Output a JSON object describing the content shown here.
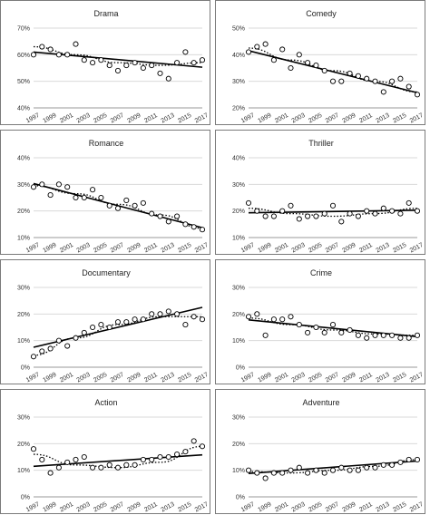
{
  "chart_data": [
    {
      "type": "scatter",
      "title": "Drama",
      "ylim": [
        0.4,
        0.7
      ],
      "yticks": [
        "40%",
        "50%",
        "60%",
        "70%"
      ],
      "x": [
        1997,
        1998,
        1999,
        2000,
        2001,
        2002,
        2003,
        2004,
        2005,
        2006,
        2007,
        2008,
        2009,
        2010,
        2011,
        2012,
        2013,
        2014,
        2015,
        2016,
        2017
      ],
      "values": [
        0.6,
        0.63,
        0.62,
        0.6,
        0.6,
        0.64,
        0.58,
        0.57,
        0.58,
        0.56,
        0.54,
        0.56,
        0.57,
        0.55,
        0.56,
        0.53,
        0.51,
        0.57,
        0.61,
        0.57,
        0.58
      ],
      "trend_linear": [
        0.61,
        0.553
      ],
      "trend_dotted": [
        0.63,
        0.6,
        0.57,
        0.56,
        0.57
      ]
    },
    {
      "type": "scatter",
      "title": "Comedy",
      "ylim": [
        0.2,
        0.5
      ],
      "yticks": [
        "20%",
        "30%",
        "40%",
        "50%"
      ],
      "x": [
        1997,
        1998,
        1999,
        2000,
        2001,
        2002,
        2003,
        2004,
        2005,
        2006,
        2007,
        2008,
        2009,
        2010,
        2011,
        2012,
        2013,
        2014,
        2015,
        2016,
        2017
      ],
      "values": [
        0.41,
        0.43,
        0.44,
        0.38,
        0.42,
        0.35,
        0.4,
        0.37,
        0.36,
        0.34,
        0.3,
        0.3,
        0.33,
        0.32,
        0.31,
        0.3,
        0.26,
        0.3,
        0.31,
        0.28,
        0.25
      ],
      "trend_linear": [
        0.415,
        0.257
      ],
      "trend_dotted": [
        0.425,
        0.38,
        0.34,
        0.3,
        0.26
      ]
    },
    {
      "type": "scatter",
      "title": "Romance",
      "ylim": [
        0.1,
        0.4
      ],
      "yticks": [
        "10%",
        "20%",
        "30%",
        "40%"
      ],
      "x": [
        1997,
        1998,
        1999,
        2000,
        2001,
        2002,
        2003,
        2004,
        2005,
        2006,
        2007,
        2008,
        2009,
        2010,
        2011,
        2012,
        2013,
        2014,
        2015,
        2016,
        2017
      ],
      "values": [
        0.29,
        0.3,
        0.26,
        0.3,
        0.29,
        0.25,
        0.25,
        0.28,
        0.25,
        0.22,
        0.21,
        0.24,
        0.22,
        0.23,
        0.19,
        0.18,
        0.16,
        0.18,
        0.15,
        0.14,
        0.13
      ],
      "trend_linear": [
        0.303,
        0.137
      ],
      "trend_dotted": [
        0.295,
        0.265,
        0.225,
        0.185,
        0.135
      ]
    },
    {
      "type": "scatter",
      "title": "Thriller",
      "ylim": [
        0.1,
        0.4
      ],
      "yticks": [
        "10%",
        "20%",
        "30%",
        "40%"
      ],
      "x": [
        1997,
        1998,
        1999,
        2000,
        2001,
        2002,
        2003,
        2004,
        2005,
        2006,
        2007,
        2008,
        2009,
        2010,
        2011,
        2012,
        2013,
        2014,
        2015,
        2016,
        2017
      ],
      "values": [
        0.23,
        0.2,
        0.18,
        0.18,
        0.2,
        0.22,
        0.17,
        0.18,
        0.18,
        0.19,
        0.22,
        0.16,
        0.19,
        0.18,
        0.2,
        0.19,
        0.21,
        0.2,
        0.19,
        0.23,
        0.2
      ],
      "trend_linear": [
        0.193,
        0.203
      ],
      "trend_dotted": [
        0.21,
        0.19,
        0.18,
        0.19,
        0.21
      ]
    },
    {
      "type": "scatter",
      "title": "Documentary",
      "ylim": [
        0.0,
        0.3
      ],
      "yticks": [
        "0%",
        "10%",
        "20%",
        "30%"
      ],
      "x": [
        1997,
        1998,
        1999,
        2000,
        2001,
        2002,
        2003,
        2004,
        2005,
        2006,
        2007,
        2008,
        2009,
        2010,
        2011,
        2012,
        2013,
        2014,
        2015,
        2016,
        2017
      ],
      "values": [
        0.04,
        0.06,
        0.07,
        0.1,
        0.08,
        0.11,
        0.13,
        0.15,
        0.16,
        0.15,
        0.17,
        0.17,
        0.18,
        0.18,
        0.2,
        0.2,
        0.21,
        0.2,
        0.16,
        0.19,
        0.18
      ],
      "trend_linear": [
        0.075,
        0.225
      ],
      "trend_dotted": [
        0.045,
        0.11,
        0.16,
        0.19,
        0.19
      ]
    },
    {
      "type": "scatter",
      "title": "Crime",
      "ylim": [
        0.0,
        0.3
      ],
      "yticks": [
        "0%",
        "10%",
        "20%",
        "30%"
      ],
      "x": [
        1997,
        1998,
        1999,
        2000,
        2001,
        2002,
        2003,
        2004,
        2005,
        2006,
        2007,
        2008,
        2009,
        2010,
        2011,
        2012,
        2013,
        2014,
        2015,
        2016,
        2017
      ],
      "values": [
        0.19,
        0.2,
        0.12,
        0.18,
        0.18,
        0.19,
        0.16,
        0.13,
        0.15,
        0.13,
        0.16,
        0.13,
        0.14,
        0.12,
        0.11,
        0.12,
        0.12,
        0.12,
        0.11,
        0.11,
        0.12
      ],
      "trend_linear": [
        0.178,
        0.115
      ],
      "trend_dotted": [
        0.185,
        0.16,
        0.14,
        0.125,
        0.12
      ]
    },
    {
      "type": "scatter",
      "title": "Action",
      "ylim": [
        0.0,
        0.3
      ],
      "yticks": [
        "0%",
        "10%",
        "20%",
        "30%"
      ],
      "x": [
        1997,
        1998,
        1999,
        2000,
        2001,
        2002,
        2003,
        2004,
        2005,
        2006,
        2007,
        2008,
        2009,
        2010,
        2011,
        2012,
        2013,
        2014,
        2015,
        2016,
        2017
      ],
      "values": [
        0.18,
        0.14,
        0.09,
        0.11,
        0.13,
        0.14,
        0.15,
        0.11,
        0.11,
        0.12,
        0.11,
        0.12,
        0.12,
        0.14,
        0.14,
        0.15,
        0.15,
        0.16,
        0.17,
        0.21,
        0.19
      ],
      "trend_linear": [
        0.115,
        0.158
      ],
      "trend_dotted": [
        0.16,
        0.12,
        0.11,
        0.13,
        0.19
      ]
    },
    {
      "type": "scatter",
      "title": "Adventure",
      "ylim": [
        0.0,
        0.3
      ],
      "yticks": [
        "0%",
        "10%",
        "20%",
        "30%"
      ],
      "x": [
        1997,
        1998,
        1999,
        2000,
        2001,
        2002,
        2003,
        2004,
        2005,
        2006,
        2007,
        2008,
        2009,
        2010,
        2011,
        2012,
        2013,
        2014,
        2015,
        2016,
        2017
      ],
      "values": [
        0.1,
        0.09,
        0.07,
        0.09,
        0.09,
        0.1,
        0.11,
        0.09,
        0.1,
        0.09,
        0.1,
        0.11,
        0.1,
        0.1,
        0.11,
        0.11,
        0.12,
        0.12,
        0.13,
        0.14,
        0.14
      ],
      "trend_linear": [
        0.088,
        0.135
      ],
      "trend_dotted": [
        0.095,
        0.09,
        0.1,
        0.115,
        0.14
      ]
    }
  ],
  "xticks": [
    "1997",
    "1999",
    "2001",
    "2003",
    "2005",
    "2007",
    "2009",
    "2011",
    "2013",
    "2015",
    "2017"
  ]
}
